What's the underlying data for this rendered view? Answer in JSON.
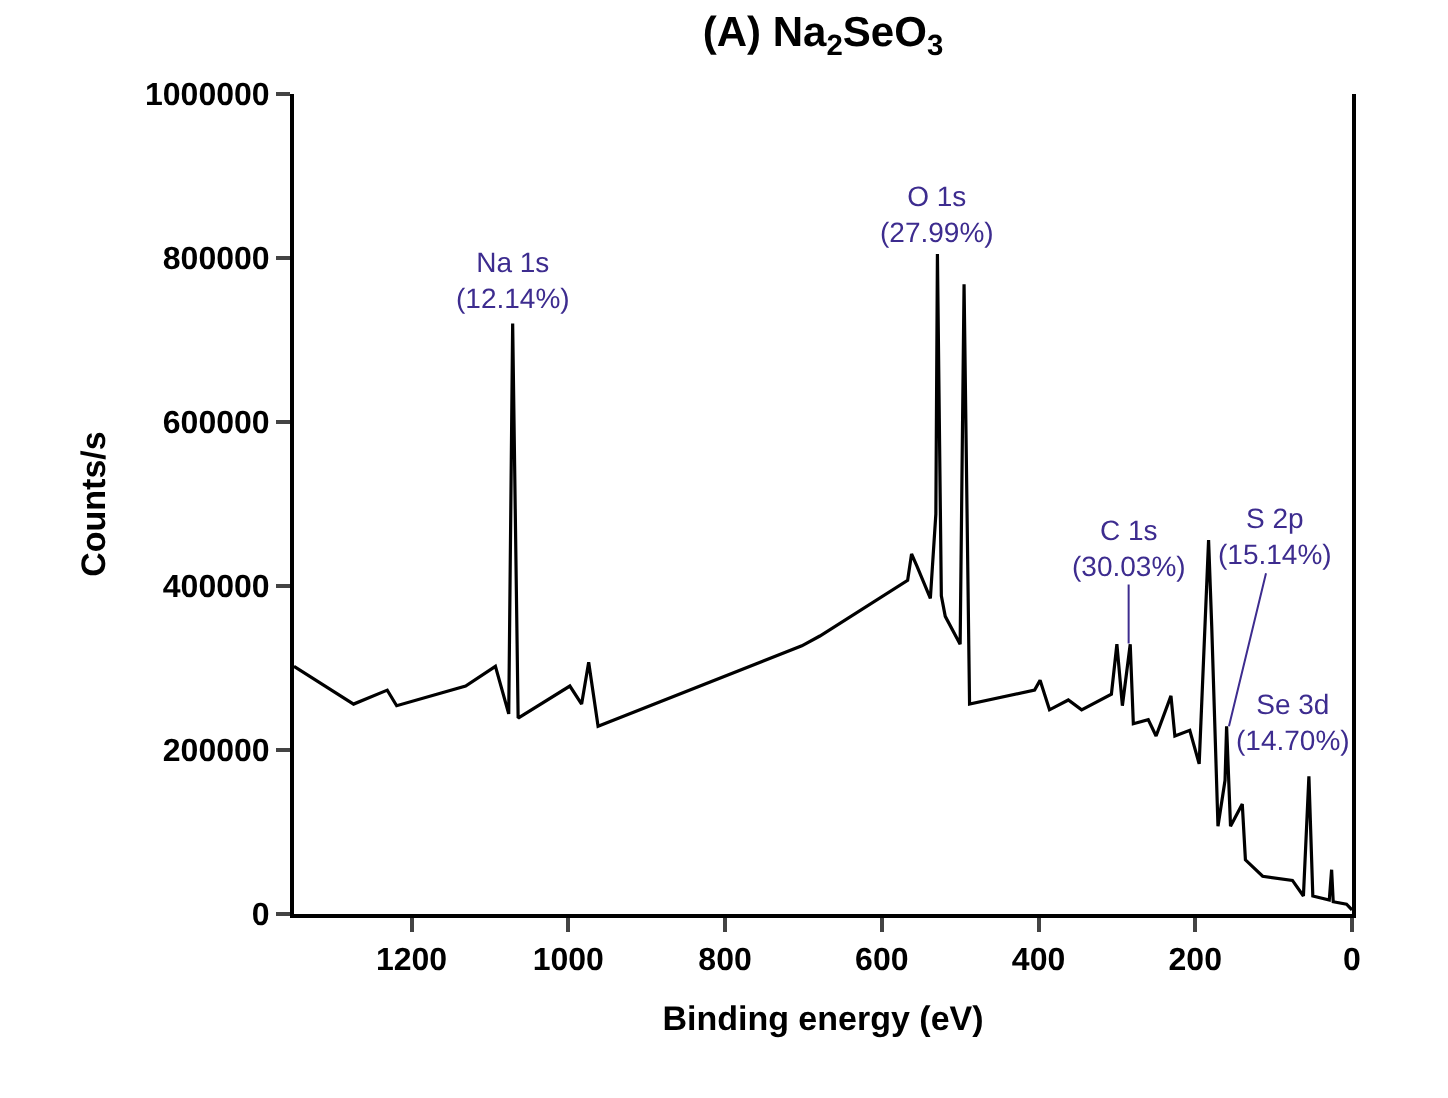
{
  "chart_data": {
    "type": "line",
    "title": "(A) Na$_{2}$SeO$_{3}$",
    "xlabel": "Binding energy (eV)",
    "ylabel": "Counts/s",
    "x": [
      1350,
      1274,
      1231,
      1219,
      1131,
      1093,
      1076,
      1071,
      1064,
      998,
      983,
      974,
      962,
      702,
      679,
      567,
      562,
      555,
      538,
      531,
      529,
      524,
      519,
      500,
      495,
      488,
      405,
      398,
      386,
      362,
      345,
      307,
      300,
      293,
      283,
      279,
      260,
      250,
      231,
      226,
      207,
      195,
      183,
      179,
      171,
      162,
      160,
      155,
      140,
      136,
      114,
      76,
      62,
      55,
      50,
      29,
      26,
      24,
      7,
      0
    ],
    "series": [
      {
        "color": "#000000",
        "values": [
          302000,
          256000,
          273000,
          254000,
          278000,
          302000,
          244000,
          720000,
          239000,
          278000,
          256000,
          307000,
          229000,
          327000,
          339000,
          407000,
          439000,
          424000,
          385000,
          488000,
          805000,
          388000,
          363000,
          329000,
          768000,
          256000,
          273000,
          285000,
          249000,
          261000,
          249000,
          268000,
          329000,
          254000,
          329000,
          232000,
          237000,
          217000,
          266000,
          217000,
          224000,
          183000,
          456000,
          351000,
          107000,
          163000,
          229000,
          107000,
          134000,
          66000,
          46000,
          41000,
          22000,
          168000,
          22000,
          17000,
          54000,
          15000,
          12000,
          5000
        ]
      }
    ],
    "xlim": [
      1350,
      0
    ],
    "xticks": [
      1200,
      1000,
      800,
      600,
      400,
      200,
      0
    ],
    "ylim": [
      0,
      1000000
    ],
    "yticks": [
      0,
      200000,
      400000,
      600000,
      800000,
      1000000
    ],
    "marker": "none",
    "line_style": "solid",
    "annotations": [
      {
        "text": "Na 1s\n(12.14%)",
        "x": 1071,
        "y": 720000
      },
      {
        "text": "O 1s\n(27.99%)",
        "x": 529,
        "y": 805000
      },
      {
        "text": "C 1s\n(30.03%)",
        "x": 285,
        "y": 330000
      },
      {
        "text": "S 2p\n(15.14%)",
        "x": 157,
        "y": 229000
      },
      {
        "text": "Se 3d\n(14.70%)",
        "x": 55,
        "y": 168000
      }
    ]
  }
}
